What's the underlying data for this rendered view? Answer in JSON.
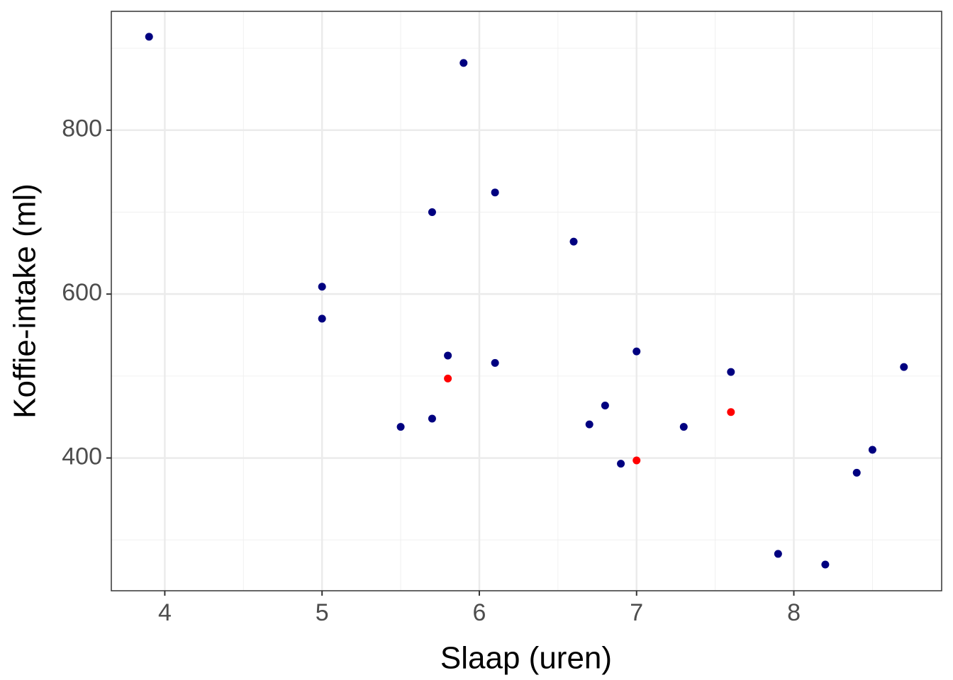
{
  "chart_data": {
    "type": "scatter",
    "xlabel": "Slaap (uren)",
    "ylabel": "Koffie-intake (ml)",
    "xlim": [
      3.66,
      8.94
    ],
    "ylim": [
      238,
      945
    ],
    "xticks": [
      4,
      5,
      6,
      7,
      8
    ],
    "yticks": [
      400,
      600,
      800
    ],
    "xminorticks": [
      4.5,
      5.5,
      6.5,
      7.5,
      8.5
    ],
    "yminorticks": [
      300,
      500,
      700,
      900
    ],
    "grid": true,
    "series": [
      {
        "color": "#000080",
        "x": [
          3.9,
          5.9,
          6.1,
          5.7,
          6.6,
          5.0,
          5.0,
          5.8,
          6.1,
          7.0,
          7.6,
          8.7,
          6.8,
          5.5,
          5.7,
          6.7,
          7.3,
          6.9,
          8.5,
          8.4,
          7.9,
          8.2
        ],
        "values": [
          914,
          882,
          724,
          700,
          664,
          609,
          570,
          525,
          516,
          530,
          505,
          511,
          464,
          438,
          448,
          441,
          438,
          393,
          410,
          382,
          283,
          270
        ]
      },
      {
        "color": "#ff0000",
        "x": [
          5.8,
          7.0,
          7.6
        ],
        "values": [
          497,
          397,
          456
        ]
      }
    ]
  }
}
